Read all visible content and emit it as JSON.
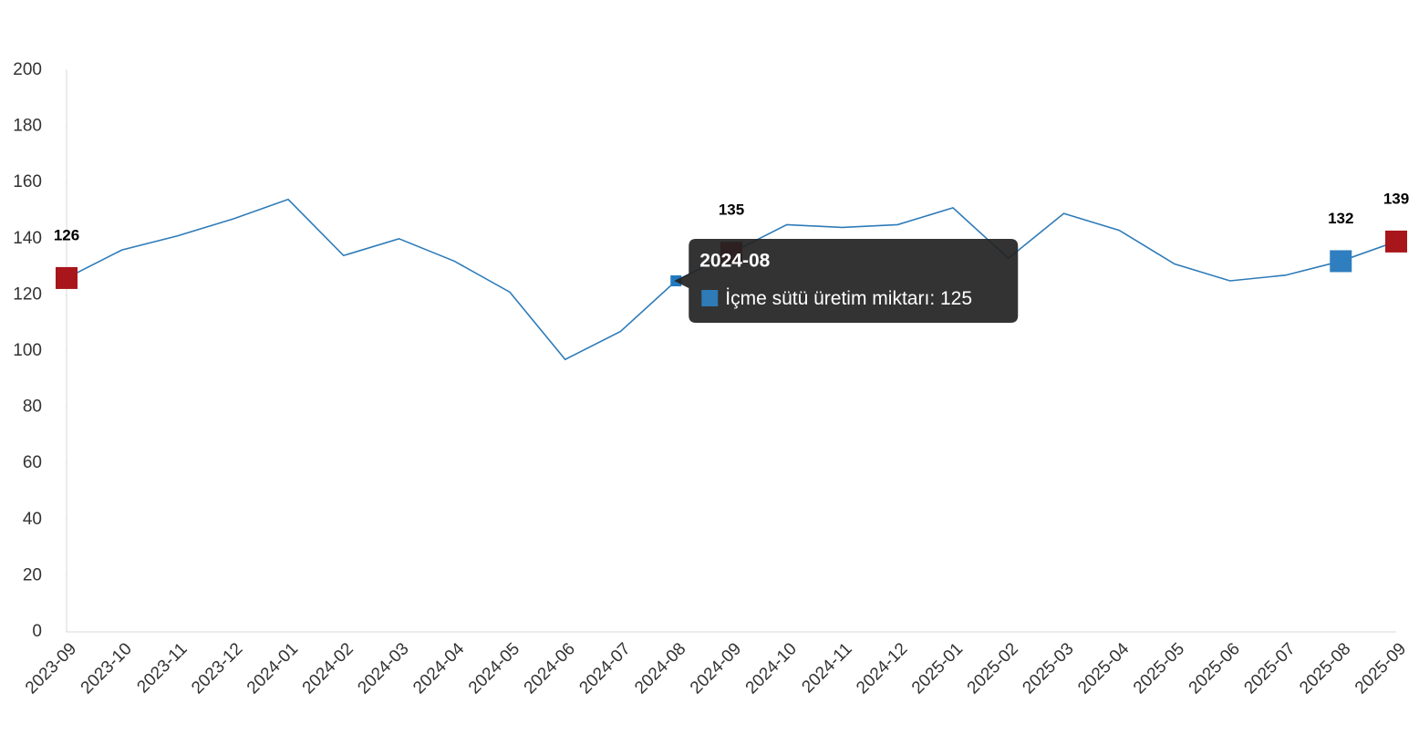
{
  "chart_data": {
    "type": "line",
    "categories": [
      "2023-09",
      "2023-10",
      "2023-11",
      "2023-12",
      "2024-01",
      "2024-02",
      "2024-03",
      "2024-04",
      "2024-05",
      "2024-06",
      "2024-07",
      "2024-08",
      "2024-09",
      "2024-10",
      "2024-11",
      "2024-12",
      "2025-01",
      "2025-02",
      "2025-03",
      "2025-04",
      "2025-05",
      "2025-06",
      "2025-07",
      "2025-08",
      "2025-09"
    ],
    "series": [
      {
        "name": "İçme sütü üretim miktarı",
        "color": "#2e7bb8",
        "values": [
          126,
          136,
          141,
          147,
          154,
          134,
          140,
          132,
          121,
          97,
          107,
          125,
          135,
          145,
          144,
          145,
          151,
          133,
          149,
          143,
          131,
          125,
          127,
          132,
          139
        ],
        "marker_colors": [
          "#a8151b",
          null,
          null,
          null,
          null,
          null,
          null,
          null,
          null,
          null,
          null,
          null,
          "#a8151b",
          null,
          null,
          null,
          null,
          null,
          null,
          null,
          null,
          null,
          null,
          "#2f7ebf",
          "#a8151b"
        ]
      }
    ],
    "ylim": [
      0,
      200
    ],
    "yticks": [
      0,
      20,
      40,
      60,
      80,
      100,
      120,
      140,
      160,
      180,
      200
    ],
    "tooltip_index": 11
  }
}
